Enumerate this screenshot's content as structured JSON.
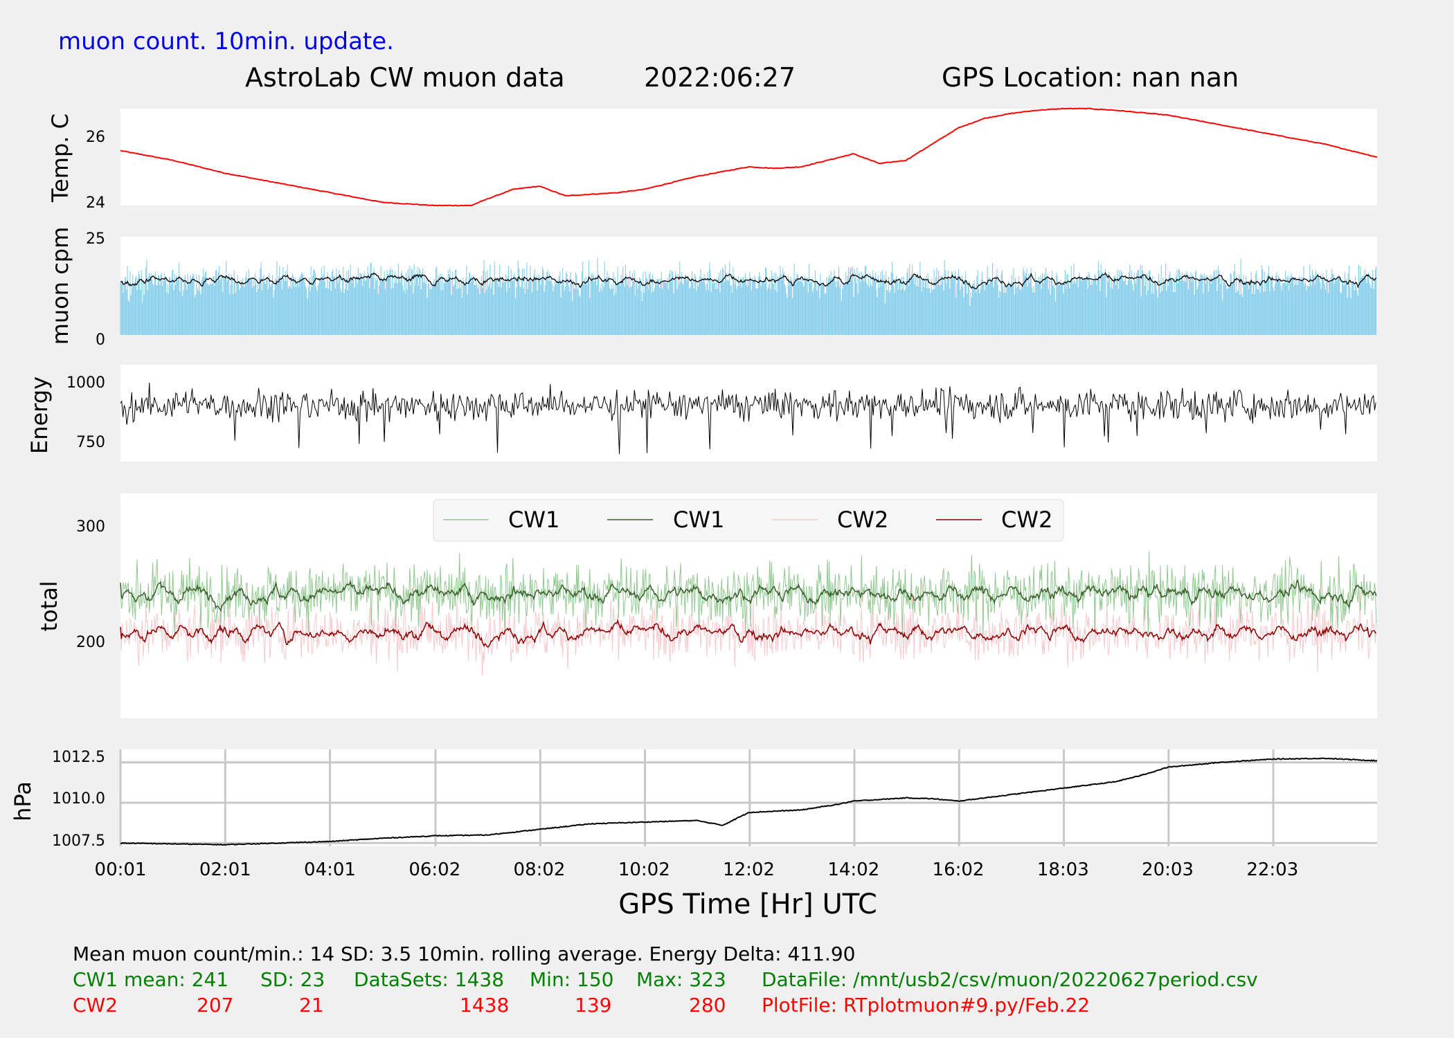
{
  "header": {
    "update_note": "muon count.  10min. update.",
    "title": "AstroLab CW muon data",
    "date": "2022:06:27",
    "gps_location": "GPS Location: nan   nan"
  },
  "colors": {
    "temp": "#ff0000",
    "muon_bars": "#87ceeb",
    "muon_avg": "#000000",
    "energy": "#000000",
    "cw1_raw": "#90c890",
    "cw1_avg": "#3a5f2a",
    "cw2_raw": "#f6c8cc",
    "cw2_avg": "#8b0000",
    "pressure": "#000000",
    "green_text": "#008000",
    "red_text": "#ff0000"
  },
  "chart_data": [
    {
      "type": "line",
      "panel": "temperature",
      "ylabel": "Temp. C",
      "yticks": [
        24,
        26
      ],
      "ylim": [
        24,
        27
      ],
      "series": [
        {
          "x": [
            0,
            1,
            2,
            3,
            4,
            5,
            6,
            6.7,
            7,
            7.5,
            8,
            8.5,
            9,
            9.5,
            10,
            11,
            12,
            12.5,
            13,
            13.5,
            14,
            14.5,
            15,
            15.5,
            16,
            16.5,
            17,
            17.5,
            18,
            18.5,
            19,
            20,
            21,
            22,
            23,
            24
          ],
          "y": [
            25.7,
            25.4,
            25.0,
            24.7,
            24.4,
            24.1,
            24.0,
            24.0,
            24.2,
            24.5,
            24.6,
            24.3,
            24.35,
            24.4,
            24.5,
            24.9,
            25.2,
            25.15,
            25.2,
            25.4,
            25.6,
            25.3,
            25.4,
            25.9,
            26.4,
            26.7,
            26.85,
            26.95,
            27.0,
            27.0,
            26.95,
            26.8,
            26.5,
            26.2,
            25.9,
            25.5
          ]
        }
      ]
    },
    {
      "type": "bar",
      "panel": "muon_cpm",
      "ylabel": "muon cpm",
      "yticks": [
        0,
        25
      ],
      "ylim": [
        0,
        25
      ],
      "series": [
        {
          "name": "per-minute count",
          "mean": 14,
          "sd": 3.5
        },
        {
          "name": "10min. rolling average",
          "mean": 14
        }
      ]
    },
    {
      "type": "line",
      "panel": "energy",
      "ylabel": "Energy",
      "yticks": [
        750,
        1000
      ],
      "ylim": [
        660,
        1070
      ],
      "series": [
        {
          "mean": 900,
          "delta": 411.9
        }
      ]
    },
    {
      "type": "line",
      "panel": "total",
      "ylabel": "total",
      "yticks": [
        200,
        300
      ],
      "ylim": [
        132,
        328
      ],
      "legend": [
        "CW1",
        "CW1",
        "CW2",
        "CW2"
      ],
      "series": [
        {
          "name": "CW1",
          "style": "raw",
          "mean": 241,
          "sd": 23,
          "min": 150,
          "max": 323
        },
        {
          "name": "CW1",
          "style": "10min average",
          "mean": 241
        },
        {
          "name": "CW2",
          "style": "raw",
          "mean": 207,
          "sd": 21,
          "min": 139,
          "max": 280
        },
        {
          "name": "CW2",
          "style": "10min average",
          "mean": 207
        }
      ]
    },
    {
      "type": "line",
      "panel": "pressure",
      "ylabel": "hPa",
      "yticks": [
        "1007.5",
        "1010.0",
        "1012.5"
      ],
      "ylim": [
        1007.3,
        1013.3
      ],
      "grid": true,
      "xlabel": "GPS Time  [Hr] UTC",
      "xticks": [
        "00:01",
        "02:01",
        "04:01",
        "06:02",
        "08:02",
        "10:02",
        "12:02",
        "14:02",
        "16:02",
        "18:03",
        "20:03",
        "22:03"
      ],
      "series": [
        {
          "x": [
            0,
            1,
            2,
            3,
            4,
            5,
            6,
            7,
            8,
            9,
            10,
            11,
            11.5,
            12,
            13,
            13.7,
            14,
            15,
            15.5,
            16,
            17,
            18,
            19,
            19.5,
            20,
            21,
            22,
            23,
            24
          ],
          "y": [
            1007.5,
            1007.45,
            1007.4,
            1007.5,
            1007.6,
            1007.8,
            1007.95,
            1008.0,
            1008.35,
            1008.7,
            1008.8,
            1008.9,
            1008.6,
            1009.4,
            1009.55,
            1009.9,
            1010.1,
            1010.3,
            1010.25,
            1010.1,
            1010.5,
            1010.9,
            1011.3,
            1011.7,
            1012.2,
            1012.5,
            1012.7,
            1012.75,
            1012.6
          ]
        }
      ]
    }
  ],
  "stats": {
    "line1": "Mean muon count/min.: 14  SD: 3.5   10min. rolling average.    Energy Delta:  411.90",
    "cw1": {
      "mean": "CW1 mean: 241",
      "sd": "SD: 23",
      "datasets": "DataSets: 1438",
      "min": "Min: 150",
      "max": "Max: 323",
      "file": "DataFile: /mnt/usb2/csv/muon/20220627period.csv"
    },
    "cw2": {
      "mean": "CW2",
      "mean_val": "207",
      "sd": "21",
      "datasets": "1438",
      "min": "139",
      "max": "280",
      "file": "PlotFile: RTplotmuon#9.py/Feb.22"
    }
  }
}
